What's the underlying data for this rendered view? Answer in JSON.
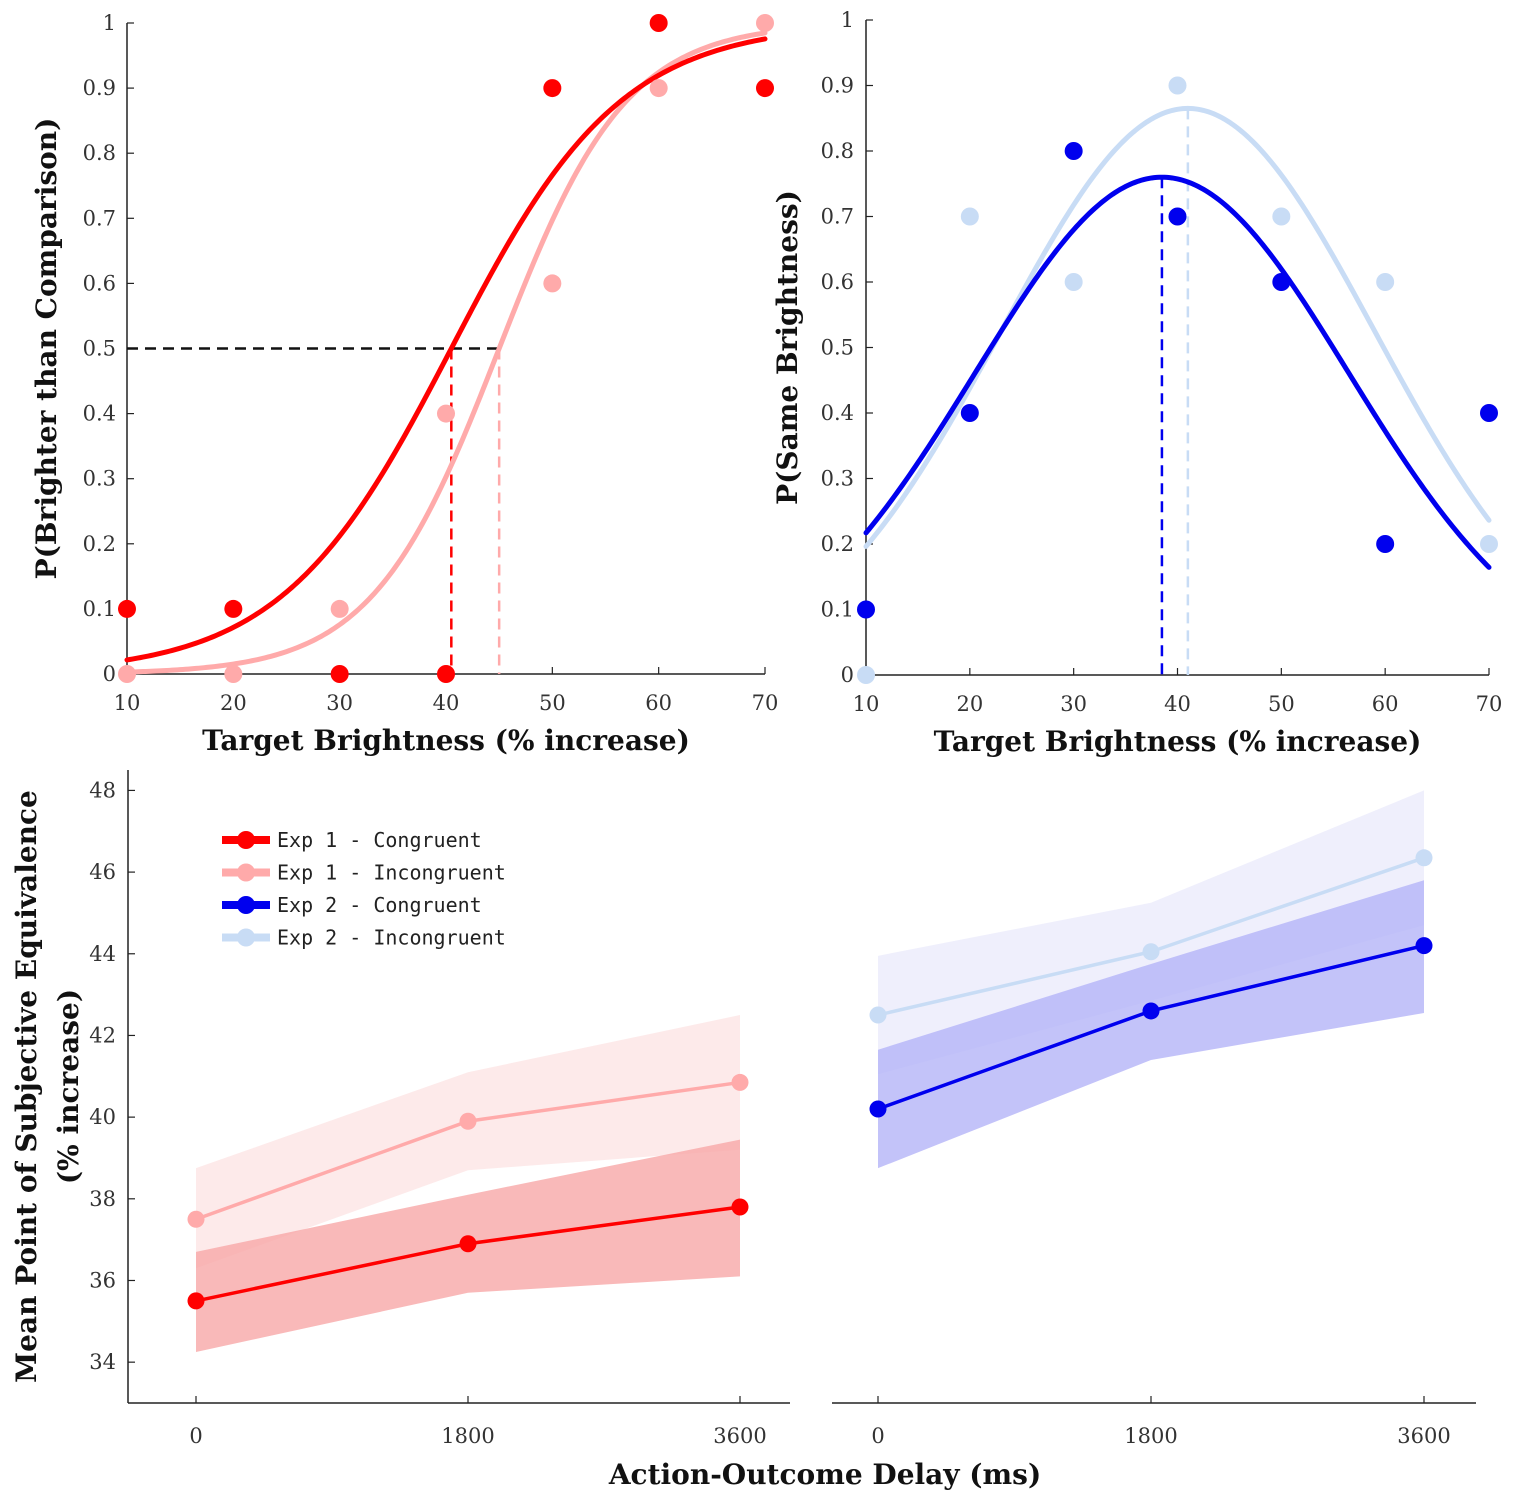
{
  "chart_data": [
    {
      "type": "scatter",
      "panel": "psychometric",
      "xlabel": "Target Brightness (% increase)",
      "ylabel": "P(Brighter than Comparison)",
      "xlim": [
        10,
        70
      ],
      "ylim": [
        0,
        1
      ],
      "xticks": [
        "10",
        "20",
        "30",
        "40",
        "50",
        "60",
        "70"
      ],
      "yticks": [
        "0",
        "0.1",
        "0.2",
        "0.3",
        "0.4",
        "0.5",
        "0.6",
        "0.7",
        "0.8",
        "0.9",
        "1"
      ],
      "x": [
        10,
        20,
        30,
        40,
        50,
        60,
        70
      ],
      "series": [
        {
          "color": "#ff0000",
          "values": [
            0.1,
            0.1,
            0.0,
            0.0,
            0.9,
            1.0,
            0.9
          ],
          "fit": {
            "model": "logistic",
            "pse": 40.5,
            "slope": 8.0
          }
        },
        {
          "color": "#ffaaaa",
          "values": [
            0.0,
            0.0,
            0.1,
            0.4,
            0.6,
            0.9,
            1.0
          ],
          "fit": {
            "model": "logistic",
            "pse": 45.0,
            "slope": 6.0
          }
        }
      ],
      "threshold_y": 0.5,
      "grid": false
    },
    {
      "type": "scatter",
      "panel": "same-judgement",
      "xlabel": "Target Brightness (% increase)",
      "ylabel": "P(Same Brightness)",
      "xlim": [
        10,
        70
      ],
      "ylim": [
        0,
        1
      ],
      "xticks": [
        "10",
        "20",
        "30",
        "40",
        "50",
        "60",
        "70"
      ],
      "yticks": [
        "0",
        "0.1",
        "0.2",
        "0.3",
        "0.4",
        "0.5",
        "0.6",
        "0.7",
        "0.8",
        "0.9",
        "1"
      ],
      "x": [
        10,
        20,
        30,
        40,
        50,
        60,
        70
      ],
      "series": [
        {
          "color": "#0000ee",
          "values": [
            0.1,
            0.4,
            0.8,
            0.7,
            0.6,
            0.2,
            0.4
          ],
          "fit": {
            "model": "gaussian",
            "peak": 0.76,
            "mean": 38.5,
            "sd": 18.0
          }
        },
        {
          "color": "#c8dcf5",
          "values": [
            0.0,
            0.7,
            0.6,
            0.9,
            0.7,
            0.6,
            0.2
          ],
          "fit": {
            "model": "gaussian",
            "peak": 0.865,
            "mean": 41.0,
            "sd": 18.0
          }
        }
      ],
      "grid": false
    },
    {
      "type": "line",
      "panel": "pse-exp1",
      "xlabel": "Action-Outcome Delay (ms)",
      "ylabel": [
        "Mean Point of Subjective Equivalence",
        "(% increase)"
      ],
      "xticks": [
        "0",
        "1800",
        "3600"
      ],
      "yticks": [
        "34",
        "36",
        "38",
        "40",
        "42",
        "44",
        "46",
        "48"
      ],
      "x": [
        0,
        1800,
        3600
      ],
      "ylim": [
        33,
        48.5
      ],
      "series": [
        {
          "name": "Exp 1 - Congruent",
          "color": "#ff0000",
          "band_color": "#f8a8a8",
          "values": [
            35.5,
            36.9,
            37.8
          ],
          "lower": [
            34.25,
            35.7,
            36.1
          ],
          "upper": [
            36.7,
            38.1,
            39.45
          ]
        },
        {
          "name": "Exp 1 - Incongruent",
          "color": "#ffaaaa",
          "band_color": "#fde6e6",
          "values": [
            37.5,
            39.9,
            40.85
          ],
          "lower": [
            36.3,
            38.7,
            39.2
          ],
          "upper": [
            38.75,
            41.1,
            42.5
          ]
        }
      ],
      "legend": "top-left",
      "grid": false
    },
    {
      "type": "line",
      "panel": "pse-exp2",
      "x": [
        0,
        1800,
        3600
      ],
      "ylim": [
        33,
        48.5
      ],
      "xticks": [
        "0",
        "1800",
        "3600"
      ],
      "series": [
        {
          "name": "Exp 2 - Congruent",
          "color": "#0000ee",
          "band_color": "#b4b4f8",
          "values": [
            40.2,
            42.6,
            44.2
          ],
          "lower": [
            38.75,
            41.4,
            42.55
          ],
          "upper": [
            41.65,
            43.75,
            45.8
          ]
        },
        {
          "name": "Exp 2 - Incongruent",
          "color": "#c8dcf5",
          "band_color": "#ececfc",
          "values": [
            42.5,
            44.05,
            46.35
          ],
          "lower": [
            41.05,
            42.85,
            44.7
          ],
          "upper": [
            43.95,
            45.25,
            48.0
          ]
        }
      ],
      "grid": false
    }
  ],
  "shared_xlabel_bottom": "Action-Outcome Delay (ms)"
}
